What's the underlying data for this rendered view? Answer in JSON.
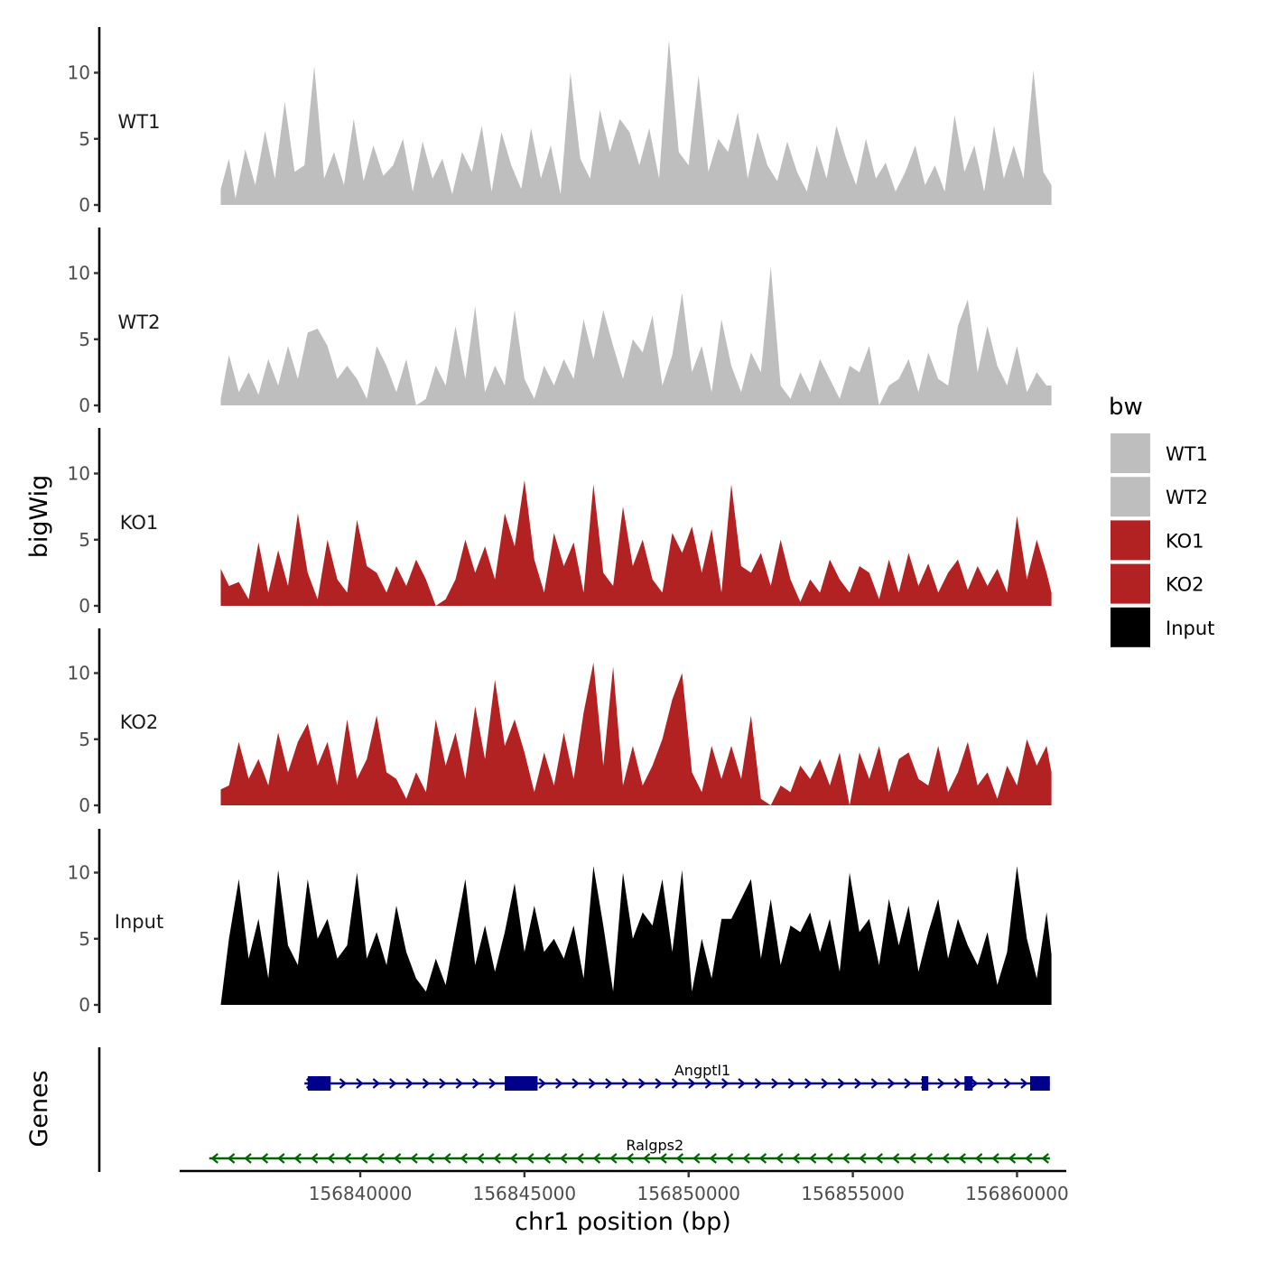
{
  "chart_data": {
    "type": "area",
    "title": "",
    "xlabel": "chr1 position (bp)",
    "ylabel": "bigWig",
    "genes_panel_label": "Genes",
    "x_range": [
      156834500,
      156861500
    ],
    "x_ticks": [
      156840000,
      156845000,
      156850000,
      156855000,
      156860000
    ],
    "x_tick_labels": [
      "156840000",
      "156845000",
      "156850000",
      "156855000",
      "156860000"
    ],
    "ylim": [
      0,
      13
    ],
    "y_ticks": [
      0,
      5,
      10
    ],
    "y_tick_labels": [
      "0",
      "5",
      "10"
    ],
    "legend": {
      "title": "bw",
      "position": "right",
      "entries": [
        {
          "label": "WT1",
          "color": "#bebebe"
        },
        {
          "label": "WT2",
          "color": "#bebebe"
        },
        {
          "label": "KO1",
          "color": "#b22222"
        },
        {
          "label": "KO2",
          "color": "#b22222"
        },
        {
          "label": "Input",
          "color": "#000000"
        }
      ]
    },
    "series": [
      {
        "name": "WT1",
        "label": "WT1",
        "color": "#bebebe",
        "x": [
          156835750,
          156836000,
          156836200,
          156836500,
          156836800,
          156837100,
          156837400,
          156837700,
          156838000,
          156838300,
          156838600,
          156838900,
          156839200,
          156839500,
          156839800,
          156840100,
          156840400,
          156840700,
          156841000,
          156841300,
          156841600,
          156841900,
          156842200,
          156842500,
          156842800,
          156843100,
          156843400,
          156843700,
          156844000,
          156844300,
          156844600,
          156844900,
          156845200,
          156845500,
          156845800,
          156846100,
          156846400,
          156846700,
          156847000,
          156847300,
          156847600,
          156847900,
          156848200,
          156848500,
          156848800,
          156849100,
          156849400,
          156849700,
          156850000,
          156850300,
          156850600,
          156850900,
          156851200,
          156851500,
          156851800,
          156852100,
          156852400,
          156852700,
          156853000,
          156853300,
          156853600,
          156853900,
          156854200,
          156854500,
          156854800,
          156855100,
          156855400,
          156855700,
          156856000,
          156856300,
          156856600,
          156856900,
          156857200,
          156857500,
          156857800,
          156858100,
          156858400,
          156858700,
          156859000,
          156859300,
          156859600,
          156859900,
          156860200,
          156860500,
          156860800,
          156861050
        ],
        "values": [
          1.2,
          3.5,
          0.5,
          4.2,
          1.5,
          5.6,
          2.0,
          7.8,
          2.5,
          3.0,
          10.5,
          2.0,
          4.0,
          1.5,
          6.5,
          1.8,
          4.5,
          2.2,
          3.0,
          5.0,
          1.0,
          4.8,
          2.0,
          3.5,
          0.8,
          4.0,
          2.5,
          6.0,
          1.0,
          5.5,
          3.0,
          1.2,
          5.8,
          2.0,
          4.5,
          0.8,
          10.0,
          3.5,
          2.0,
          7.2,
          4.0,
          6.5,
          5.5,
          3.0,
          5.8,
          2.0,
          12.5,
          4.0,
          3.0,
          9.8,
          2.5,
          5.0,
          4.0,
          7.0,
          2.0,
          5.5,
          3.0,
          1.8,
          4.8,
          2.5,
          1.0,
          4.5,
          2.0,
          6.0,
          3.5,
          1.5,
          5.0,
          2.0,
          3.2,
          1.0,
          2.5,
          4.5,
          1.5,
          3.0,
          1.0,
          6.8,
          2.5,
          4.5,
          1.0,
          6.0,
          2.0,
          4.5,
          2.0,
          10.2,
          2.5,
          1.5
        ]
      },
      {
        "name": "WT2",
        "label": "WT2",
        "color": "#bebebe",
        "x": [
          156835750,
          156836000,
          156836300,
          156836600,
          156836900,
          156837200,
          156837500,
          156837800,
          156838100,
          156838400,
          156838700,
          156839000,
          156839300,
          156839600,
          156839900,
          156840200,
          156840500,
          156840800,
          156841100,
          156841400,
          156841700,
          156842000,
          156842300,
          156842600,
          156842900,
          156843200,
          156843500,
          156843800,
          156844100,
          156844400,
          156844700,
          156845000,
          156845300,
          156845600,
          156845900,
          156846200,
          156846500,
          156846800,
          156847100,
          156847400,
          156847700,
          156848000,
          156848300,
          156848600,
          156848900,
          156849200,
          156849500,
          156849800,
          156850100,
          156850400,
          156850700,
          156851000,
          156851300,
          156851600,
          156851900,
          156852200,
          156852500,
          156852800,
          156853100,
          156853400,
          156853700,
          156854000,
          156854300,
          156854600,
          156854900,
          156855200,
          156855500,
          156855800,
          156856100,
          156856400,
          156856700,
          156857000,
          156857300,
          156857600,
          156857900,
          156858200,
          156858500,
          156858800,
          156859100,
          156859400,
          156859700,
          156860000,
          156860300,
          156860600,
          156860900,
          156861050
        ],
        "values": [
          0.5,
          3.8,
          1.0,
          2.5,
          0.8,
          3.5,
          1.5,
          4.5,
          2.0,
          5.5,
          5.8,
          4.5,
          2.0,
          3.0,
          2.0,
          0.5,
          4.5,
          3.0,
          1.0,
          3.5,
          0.0,
          0.5,
          3.0,
          1.5,
          6.0,
          2.0,
          7.5,
          1.0,
          3.0,
          1.5,
          7.2,
          2.0,
          0.5,
          3.0,
          1.5,
          3.5,
          2.0,
          6.5,
          3.5,
          7.2,
          4.5,
          2.0,
          5.0,
          4.0,
          6.8,
          1.5,
          3.8,
          8.5,
          2.5,
          4.5,
          1.0,
          6.5,
          3.0,
          1.0,
          4.0,
          2.5,
          10.5,
          1.5,
          0.5,
          2.5,
          1.0,
          3.5,
          2.0,
          0.5,
          3.0,
          2.5,
          4.5,
          0.0,
          1.5,
          2.0,
          3.5,
          1.0,
          4.0,
          2.0,
          1.5,
          6.0,
          8.0,
          2.5,
          6.0,
          3.0,
          1.5,
          4.5,
          1.0,
          2.5,
          1.5,
          1.5
        ]
      },
      {
        "name": "KO1",
        "label": "KO1",
        "color": "#b22222",
        "x": [
          156835750,
          156836000,
          156836300,
          156836600,
          156836900,
          156837200,
          156837500,
          156837800,
          156838100,
          156838400,
          156838700,
          156839000,
          156839300,
          156839600,
          156839900,
          156840200,
          156840500,
          156840800,
          156841100,
          156841400,
          156841700,
          156842000,
          156842300,
          156842600,
          156842900,
          156843200,
          156843500,
          156843800,
          156844100,
          156844400,
          156844700,
          156845000,
          156845300,
          156845600,
          156845900,
          156846200,
          156846500,
          156846800,
          156847100,
          156847400,
          156847700,
          156848000,
          156848300,
          156848600,
          156848900,
          156849200,
          156849500,
          156849800,
          156850100,
          156850400,
          156850700,
          156851000,
          156851300,
          156851600,
          156851900,
          156852200,
          156852500,
          156852800,
          156853100,
          156853400,
          156853700,
          156854000,
          156854300,
          156854600,
          156854900,
          156855200,
          156855500,
          156855800,
          156856100,
          156856400,
          156856700,
          156857000,
          156857300,
          156857600,
          156857900,
          156858200,
          156858500,
          156858800,
          156859100,
          156859400,
          156859700,
          156860000,
          156860300,
          156860600,
          156860900,
          156861050
        ],
        "values": [
          2.8,
          1.5,
          1.8,
          0.5,
          4.8,
          1.0,
          4.2,
          1.5,
          7.0,
          2.5,
          0.5,
          5.0,
          2.0,
          1.0,
          6.5,
          3.0,
          2.5,
          1.0,
          3.0,
          1.5,
          3.5,
          2.0,
          0.0,
          0.5,
          2.0,
          5.0,
          2.5,
          4.5,
          2.0,
          7.0,
          4.5,
          9.5,
          3.5,
          1.0,
          5.5,
          3.0,
          4.8,
          1.0,
          9.2,
          2.5,
          1.5,
          7.5,
          3.0,
          5.0,
          2.0,
          1.0,
          5.5,
          4.0,
          6.0,
          2.5,
          5.8,
          1.0,
          9.2,
          3.0,
          2.5,
          4.0,
          1.5,
          5.0,
          2.0,
          0.3,
          2.0,
          1.0,
          3.5,
          2.0,
          1.0,
          3.0,
          2.5,
          0.5,
          3.5,
          1.0,
          4.0,
          1.5,
          3.2,
          1.0,
          2.5,
          3.5,
          1.2,
          3.0,
          1.5,
          2.8,
          1.0,
          6.8,
          2.0,
          5.0,
          2.5,
          1.0
        ]
      },
      {
        "name": "KO2",
        "label": "KO2",
        "color": "#b22222",
        "x": [
          156835750,
          156836000,
          156836300,
          156836600,
          156836900,
          156837200,
          156837500,
          156837800,
          156838100,
          156838400,
          156838700,
          156839000,
          156839300,
          156839600,
          156839900,
          156840200,
          156840500,
          156840800,
          156841100,
          156841400,
          156841700,
          156842000,
          156842300,
          156842600,
          156842900,
          156843200,
          156843500,
          156843800,
          156844100,
          156844400,
          156844700,
          156845000,
          156845300,
          156845600,
          156845900,
          156846200,
          156846500,
          156846800,
          156847100,
          156847400,
          156847700,
          156848000,
          156848300,
          156848600,
          156848900,
          156849200,
          156849500,
          156849800,
          156850100,
          156850400,
          156850700,
          156851000,
          156851300,
          156851600,
          156851900,
          156852200,
          156852500,
          156852800,
          156853100,
          156853400,
          156853700,
          156854000,
          156854300,
          156854600,
          156854900,
          156855200,
          156855500,
          156855800,
          156856100,
          156856400,
          156856700,
          156857000,
          156857300,
          156857600,
          156857900,
          156858200,
          156858500,
          156858800,
          156859100,
          156859400,
          156859700,
          156860000,
          156860300,
          156860600,
          156860900,
          156861050
        ],
        "values": [
          1.2,
          1.5,
          4.8,
          2.0,
          3.5,
          1.5,
          5.5,
          2.5,
          4.8,
          6.2,
          3.0,
          4.8,
          1.5,
          6.5,
          2.0,
          3.5,
          6.8,
          2.5,
          2.0,
          0.5,
          2.5,
          1.0,
          6.5,
          3.0,
          5.5,
          2.0,
          7.5,
          3.5,
          9.5,
          4.5,
          6.5,
          4.0,
          1.0,
          4.0,
          1.5,
          5.5,
          2.0,
          7.0,
          10.8,
          3.0,
          10.5,
          1.5,
          4.5,
          1.5,
          3.0,
          5.0,
          8.0,
          10.0,
          2.5,
          1.0,
          4.5,
          2.0,
          4.5,
          2.0,
          6.8,
          0.5,
          0.0,
          1.5,
          1.0,
          3.0,
          2.0,
          3.5,
          1.5,
          4.0,
          0.0,
          4.0,
          2.0,
          4.5,
          1.0,
          3.5,
          4.0,
          2.0,
          1.5,
          4.5,
          1.0,
          2.5,
          4.8,
          1.5,
          2.5,
          0.5,
          3.0,
          1.5,
          5.0,
          3.0,
          4.5,
          2.5
        ]
      },
      {
        "name": "Input",
        "label": "Input",
        "color": "#000000",
        "x": [
          156835750,
          156836000,
          156836300,
          156836600,
          156836900,
          156837200,
          156837500,
          156837800,
          156838100,
          156838400,
          156838700,
          156839000,
          156839300,
          156839600,
          156839900,
          156840200,
          156840500,
          156840800,
          156841100,
          156841400,
          156841700,
          156842000,
          156842300,
          156842600,
          156842900,
          156843200,
          156843500,
          156843800,
          156844100,
          156844400,
          156844700,
          156845000,
          156845300,
          156845600,
          156845900,
          156846200,
          156846500,
          156846800,
          156847100,
          156847400,
          156847700,
          156848000,
          156848300,
          156848600,
          156848900,
          156849200,
          156849500,
          156849800,
          156850100,
          156850400,
          156850700,
          156851000,
          156851300,
          156851600,
          156851900,
          156852200,
          156852500,
          156852800,
          156853100,
          156853400,
          156853700,
          156854000,
          156854300,
          156854600,
          156854900,
          156855200,
          156855500,
          156855800,
          156856100,
          156856400,
          156856700,
          156857000,
          156857300,
          156857600,
          156857900,
          156858200,
          156858500,
          156858800,
          156859100,
          156859400,
          156859700,
          156860000,
          156860300,
          156860600,
          156860900,
          156861050
        ],
        "values": [
          0.0,
          5.0,
          9.5,
          3.5,
          6.5,
          2.0,
          10.2,
          4.5,
          3.0,
          9.5,
          5.0,
          6.5,
          3.5,
          4.5,
          10.0,
          3.5,
          5.5,
          3.0,
          7.5,
          4.0,
          2.0,
          1.0,
          3.5,
          1.5,
          5.5,
          9.5,
          3.0,
          6.0,
          2.5,
          5.5,
          9.2,
          4.0,
          7.5,
          4.0,
          5.0,
          3.5,
          6.0,
          2.0,
          10.5,
          6.0,
          1.0,
          10.0,
          5.0,
          7.0,
          6.0,
          9.5,
          4.0,
          10.2,
          1.0,
          5.0,
          2.0,
          6.5,
          6.5,
          8.0,
          9.5,
          3.5,
          8.0,
          3.0,
          6.0,
          5.5,
          7.0,
          4.0,
          6.5,
          2.5,
          10.0,
          5.5,
          6.5,
          3.0,
          8.0,
          4.5,
          7.5,
          2.5,
          5.5,
          8.0,
          3.5,
          6.5,
          4.5,
          3.0,
          5.5,
          1.5,
          4.0,
          10.5,
          5.0,
          2.0,
          7.0,
          3.8
        ]
      }
    ],
    "genes": [
      {
        "name": "Angptl1",
        "strand": "+",
        "color": "#00008b",
        "start": 156838300,
        "end": 156861000,
        "exons": [
          [
            156838400,
            156839100
          ],
          [
            156844400,
            156845400
          ],
          [
            156857100,
            156857300
          ],
          [
            156858400,
            156858650
          ],
          [
            156860400,
            156861000
          ]
        ]
      },
      {
        "name": "Ralgps2",
        "strand": "-",
        "color": "#006400",
        "start": 156835400,
        "end": 156861000,
        "exons": []
      }
    ]
  }
}
